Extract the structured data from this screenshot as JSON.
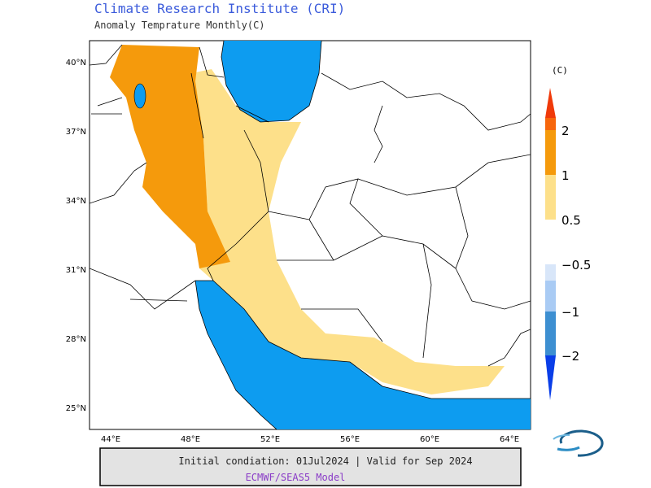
{
  "header": {
    "title": "Climate Research Institute (CRI)",
    "subtitle": "Anomaly Temprature Monthly(C)"
  },
  "map": {
    "lat_labels": [
      "40°N",
      "37°N",
      "34°N",
      "31°N",
      "28°N",
      "25°N"
    ],
    "lon_labels": [
      "44°E",
      "48°E",
      "52°E",
      "56°E",
      "60°E",
      "64°E"
    ]
  },
  "legend": {
    "unit": "(C)",
    "warm_labels": [
      "2",
      "1",
      "0.5"
    ],
    "cold_labels": [
      "−0.5",
      "−1",
      "−2"
    ]
  },
  "footer": {
    "line1": "Initial condiation: 01Jul2024 | Valid for Sep 2024",
    "line2": "ECMWF/SEAS5 Model"
  }
}
